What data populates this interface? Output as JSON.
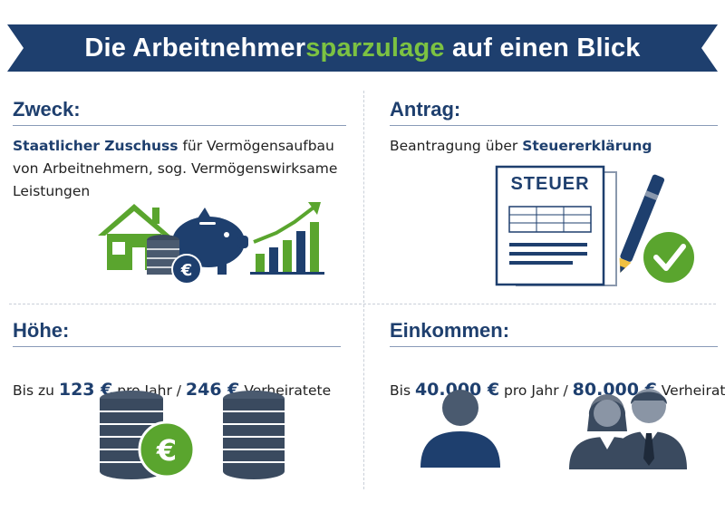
{
  "banner": {
    "title_part1": "Die Arbeitnehmer",
    "title_highlight": "sparzulage",
    "title_part2": " auf einen Blick"
  },
  "zweck": {
    "heading": "Zweck:",
    "bold_text": "Staatlicher Zuschuss",
    "text": " für Vermögensaufbau von Arbeitnehmern, sog. Vermögenswirksame Leistungen"
  },
  "antrag": {
    "heading": "Antrag:",
    "text": "Beantragung über ",
    "bold_text": "Steuererklärung",
    "document_label": "STEUER"
  },
  "hoehe": {
    "heading": "Höhe:",
    "prefix": "Bis zu ",
    "amount1": "123 €",
    "middle": " pro Jahr / ",
    "amount2": "246 €",
    "suffix": " Verheiratete"
  },
  "einkommen": {
    "heading": "Einkommen:",
    "prefix": "Bis ",
    "amount1": "40.000 €",
    "middle": " pro Jahr / ",
    "amount2": "80.000 €",
    "suffix": " Verheiratete"
  },
  "colors": {
    "navy": "#1e3f6e",
    "green": "#5aa52e",
    "banner": "#1e3f6e"
  }
}
